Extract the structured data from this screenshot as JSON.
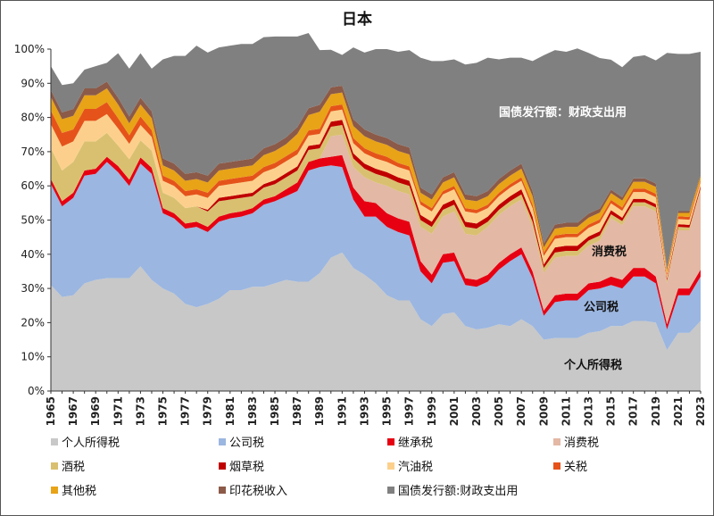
{
  "chart_data": {
    "type": "area",
    "stacked": true,
    "title": "日本",
    "x": [
      1965,
      1966,
      1967,
      1968,
      1969,
      1970,
      1971,
      1972,
      1973,
      1974,
      1975,
      1976,
      1977,
      1978,
      1979,
      1980,
      1981,
      1982,
      1983,
      1984,
      1985,
      1986,
      1987,
      1988,
      1989,
      1990,
      1991,
      1992,
      1993,
      1994,
      1995,
      1996,
      1997,
      1998,
      1999,
      2000,
      2001,
      2002,
      2003,
      2004,
      2005,
      2006,
      2007,
      2008,
      2009,
      2010,
      2011,
      2012,
      2013,
      2014,
      2015,
      2016,
      2017,
      2018,
      2019,
      2020,
      2021,
      2022,
      2023
    ],
    "xticks": [
      "1965",
      "1967",
      "1969",
      "1971",
      "1973",
      "1975",
      "1977",
      "1979",
      "1981",
      "1983",
      "1985",
      "1987",
      "1989",
      "1991",
      "1993",
      "1995",
      "1997",
      "1999",
      "2001",
      "2003",
      "2005",
      "2007",
      "2009",
      "2011",
      "2013",
      "2015",
      "2017",
      "2019",
      "2021",
      "2023"
    ],
    "ylim": [
      0,
      100
    ],
    "yticks": [
      "0%",
      "10%",
      "20%",
      "30%",
      "40%",
      "50%",
      "60%",
      "70%",
      "80%",
      "90%",
      "100%"
    ],
    "grid": false,
    "legend_position": "bottom",
    "series": [
      {
        "name": "个人所得税",
        "color": "#c8c8c8",
        "values": [
          31,
          27.5,
          28,
          31.5,
          32.5,
          33,
          33,
          33,
          36.5,
          32.5,
          30,
          28.5,
          25.5,
          24.5,
          25.5,
          27,
          29.5,
          29.5,
          30.5,
          30.5,
          31.5,
          32.5,
          32,
          32,
          34.5,
          39,
          40.5,
          36,
          34,
          31.5,
          28,
          26.5,
          26.5,
          21,
          19,
          22.5,
          23,
          19,
          18,
          18.5,
          19.5,
          19,
          21,
          19,
          15,
          15.5,
          15.5,
          15.5,
          17,
          17.5,
          19,
          19,
          20.5,
          20.5,
          20,
          12,
          17,
          17,
          20.5
        ]
      },
      {
        "name": "公司税",
        "color": "#9bb6e0",
        "values": [
          29.5,
          26.5,
          28.5,
          31.5,
          31,
          34,
          31,
          27,
          30,
          31,
          22,
          22,
          22,
          23.5,
          21,
          22.5,
          21,
          21.5,
          21.5,
          24,
          24,
          24.5,
          26.5,
          32.5,
          31,
          27,
          25,
          20,
          17,
          19.5,
          20,
          20,
          19,
          14,
          12.5,
          15,
          15,
          12,
          12.5,
          13.5,
          16,
          19,
          19,
          14,
          7,
          10.5,
          11,
          11,
          12.5,
          12.5,
          12,
          11,
          13,
          13,
          11.5,
          6,
          11,
          11,
          13
        ]
      },
      {
        "name": "继承税",
        "color": "#e60012",
        "values": [
          1.5,
          1.5,
          1.5,
          1.5,
          1.5,
          1.5,
          1.8,
          1.8,
          1.8,
          1.8,
          1.5,
          1.5,
          1.5,
          1.5,
          1.5,
          1.5,
          1.5,
          1.5,
          1.5,
          1.5,
          1.5,
          2,
          2.5,
          2.5,
          2.5,
          2.5,
          3.5,
          3.5,
          4.5,
          4,
          4,
          4,
          4,
          3,
          2.5,
          2.5,
          2.5,
          2,
          2,
          2,
          2,
          2,
          2,
          2,
          1.5,
          2,
          2,
          2,
          2,
          2,
          2.5,
          2.5,
          2.5,
          2.5,
          2,
          1.5,
          2,
          2,
          2
        ]
      },
      {
        "name": "消费税",
        "color": "#e3b8a5",
        "values": [
          0,
          0,
          0,
          0,
          0,
          0,
          0,
          0,
          0,
          0,
          0,
          0,
          0,
          0,
          0,
          0,
          0,
          0,
          0,
          0,
          0,
          0,
          0,
          0,
          0,
          6,
          6,
          6,
          7,
          6,
          8,
          8,
          8,
          10,
          12,
          11,
          12,
          13,
          13,
          14,
          14,
          14,
          14,
          13,
          11,
          11,
          11,
          11,
          11,
          12,
          17,
          16,
          18,
          18,
          19,
          12,
          17,
          17,
          23
        ]
      },
      {
        "name": "酒税",
        "color": "#d9c070",
        "values": [
          9,
          9,
          9,
          8.5,
          8,
          7,
          6,
          6,
          5,
          5,
          4.5,
          4.5,
          4.5,
          4.5,
          4.5,
          4.5,
          4,
          4,
          3.5,
          3.5,
          3.5,
          3.5,
          3.5,
          3.5,
          3,
          2.8,
          2.8,
          2.5,
          2.5,
          2.5,
          2.5,
          2.5,
          2.5,
          2,
          2,
          2,
          2,
          2,
          2,
          1.5,
          1.5,
          1.5,
          1.5,
          1.5,
          1.5,
          1.5,
          1.5,
          1.5,
          1.5,
          1.5,
          1.2,
          1.2,
          1.2,
          1.2,
          1.2,
          0.8,
          1,
          0.8,
          0.8
        ]
      },
      {
        "name": "烟草税",
        "color": "#c00000",
        "values": [
          0,
          0,
          0,
          0,
          0,
          0,
          0,
          0,
          0,
          0,
          0,
          0,
          0,
          0,
          0.5,
          1,
          1,
          1,
          1,
          1,
          1.2,
          1.2,
          1.2,
          1.2,
          1.2,
          1.5,
          1.5,
          1.5,
          1.5,
          1.5,
          1.5,
          1.5,
          1.5,
          1.5,
          1.5,
          1.5,
          1.5,
          1.5,
          1.5,
          1.5,
          1.5,
          1.5,
          1.5,
          1.5,
          1,
          1.5,
          1.5,
          1.5,
          1.2,
          1.2,
          1.2,
          1,
          1,
          1,
          1,
          0.6,
          0.8,
          0.8,
          0.7
        ]
      },
      {
        "name": "汽油税",
        "color": "#fcd08c",
        "values": [
          7,
          7,
          6,
          6,
          6,
          5.5,
          5,
          4.5,
          4.5,
          4,
          3.5,
          3.5,
          3.5,
          3.5,
          3.5,
          3.5,
          3.5,
          3.5,
          3.5,
          3.5,
          3.5,
          3.5,
          3.5,
          3,
          3,
          3,
          3,
          3,
          3,
          3,
          3,
          3,
          3,
          3,
          3,
          3,
          3,
          3,
          3,
          2.5,
          2.5,
          2.5,
          2.5,
          2.5,
          2.5,
          2.5,
          2.5,
          2.5,
          2.5,
          2.5,
          2,
          2,
          2,
          2,
          2,
          1,
          1.5,
          1.5,
          1.2
        ]
      },
      {
        "name": "关税",
        "color": "#e5531a",
        "values": [
          4,
          4,
          3.5,
          3.5,
          3.5,
          3.5,
          3,
          2.5,
          2.5,
          2,
          1.5,
          1.5,
          1.5,
          1.5,
          1.5,
          1.5,
          1.5,
          1.5,
          1.5,
          1.5,
          1.5,
          1.5,
          1.5,
          1.5,
          1.5,
          1.5,
          1.5,
          1.5,
          1.5,
          1.5,
          1.5,
          1.2,
          1.2,
          1,
          1,
          1,
          1,
          1,
          1,
          1,
          1,
          1,
          1,
          1,
          1,
          1,
          1,
          1,
          1,
          1,
          1,
          1,
          1,
          1,
          1,
          0.5,
          0.8,
          0.8,
          0.5
        ]
      },
      {
        "name": "其他税",
        "color": "#e8a317",
        "values": [
          4,
          4,
          4,
          4,
          4,
          4,
          4,
          3.5,
          3.5,
          3.5,
          3,
          3,
          3,
          3,
          3,
          3,
          3,
          3,
          3,
          3.5,
          3.5,
          3.5,
          4.5,
          4.5,
          5,
          3.5,
          3.5,
          3.5,
          3.5,
          3.5,
          3.5,
          3.5,
          3.5,
          2.5,
          2.5,
          2.5,
          2.5,
          2.5,
          2.5,
          2.5,
          2.5,
          2.5,
          2.5,
          2.5,
          1.5,
          2,
          2,
          2,
          2,
          2,
          2,
          2,
          2,
          2,
          2,
          1,
          1,
          1.2,
          1.2
        ]
      },
      {
        "name": "印花税收入",
        "color": "#8c5a48",
        "values": [
          2,
          2,
          2,
          2,
          2,
          2,
          2,
          2,
          2,
          2,
          2,
          2,
          2,
          2,
          2,
          2,
          2,
          2,
          2,
          2,
          2,
          2,
          2,
          2,
          2,
          2,
          2,
          2,
          2,
          2,
          2,
          2,
          2,
          1.5,
          1.5,
          1.5,
          1.5,
          1.5,
          1.5,
          1.5,
          1.5,
          1.5,
          1.5,
          1.5,
          1.2,
          1.2,
          1.2,
          1.2,
          1.2,
          1.2,
          1,
          1,
          1,
          1,
          1,
          0.5,
          0.5,
          0.5,
          0.5
        ]
      },
      {
        "name": "国债发行额:财政支出用",
        "color": "#808080",
        "values": [
          7,
          8,
          7.5,
          5.5,
          6.5,
          5.5,
          13,
          14,
          13,
          12.5,
          29,
          31.5,
          34.5,
          37,
          36,
          34,
          34,
          34,
          33.5,
          32.5,
          31.5,
          29.5,
          26.5,
          22,
          16,
          11,
          9,
          21,
          22.5,
          25,
          26,
          27,
          28.5,
          38,
          39,
          34,
          33,
          38,
          39,
          39,
          35,
          33,
          31,
          38,
          55,
          51,
          50,
          51,
          47,
          44,
          38,
          38,
          35.5,
          36,
          36,
          63,
          46,
          46,
          35.8
        ]
      }
    ],
    "annotations": [
      "国债发行额：财政支出用",
      "消费税",
      "公司税",
      "个人所得税"
    ]
  }
}
